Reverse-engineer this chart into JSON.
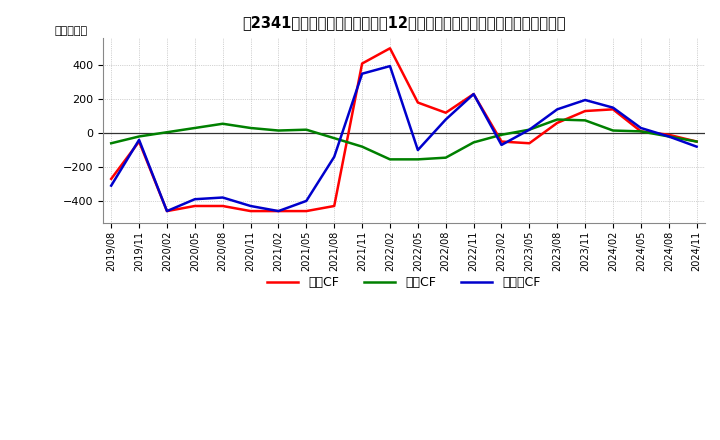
{
  "title_bracket": "、2341、",
  "title_full": "、2341、 キャッシュフローの12か月移動合計の対前年同期増減額の推移",
  "ylabel": "（百万円）",
  "ylim": [
    -530,
    560
  ],
  "yticks": [
    -400,
    -200,
    0,
    200,
    400
  ],
  "background_color": "#ffffff",
  "grid_color": "#aaaaaa",
  "legend": [
    "営業CF",
    "投資CF",
    "フリーCF"
  ],
  "colors": [
    "#ff0000",
    "#008000",
    "#0000cc"
  ],
  "dates": [
    "2019/08",
    "2019/11",
    "2020/02",
    "2020/05",
    "2020/08",
    "2020/11",
    "2021/02",
    "2021/05",
    "2021/08",
    "2021/11",
    "2022/02",
    "2022/05",
    "2022/08",
    "2022/11",
    "2023/02",
    "2023/05",
    "2023/08",
    "2023/11",
    "2024/02",
    "2024/05",
    "2024/08",
    "2024/11"
  ],
  "operating_cf": [
    -270,
    -50,
    -460,
    -430,
    -430,
    -460,
    -460,
    -460,
    -430,
    410,
    500,
    180,
    120,
    230,
    -50,
    -60,
    60,
    130,
    140,
    10,
    -10,
    -50
  ],
  "investing_cf": [
    -60,
    -20,
    5,
    30,
    55,
    30,
    15,
    20,
    -30,
    -80,
    -155,
    -155,
    -145,
    -55,
    -10,
    20,
    80,
    75,
    15,
    10,
    -20,
    -50
  ],
  "free_cf": [
    -310,
    -40,
    -460,
    -390,
    -380,
    -430,
    -460,
    -400,
    -140,
    350,
    395,
    -100,
    80,
    230,
    -70,
    20,
    140,
    195,
    150,
    30,
    -20,
    -80
  ]
}
